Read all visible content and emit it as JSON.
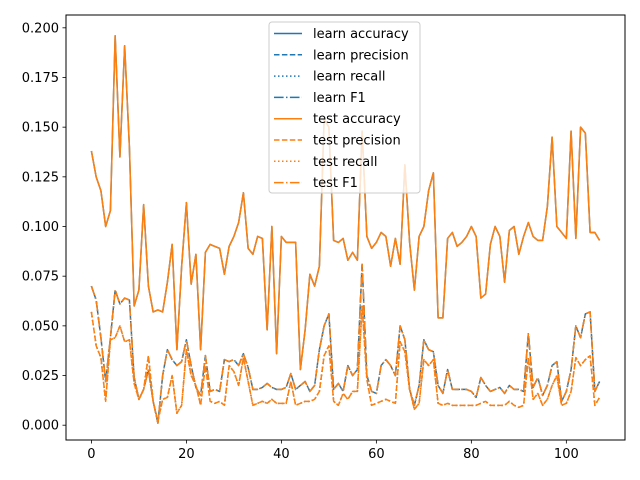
{
  "chart_data": {
    "type": "line",
    "title": "",
    "xlabel": "",
    "ylabel": "",
    "xlim": [
      -5.35,
      112.35
    ],
    "ylim": [
      -0.00745,
      0.20645
    ],
    "xticks": [
      0,
      20,
      40,
      60,
      80,
      100
    ],
    "yticks": [
      0.0,
      0.025,
      0.05,
      0.075,
      0.1,
      0.125,
      0.15,
      0.175,
      0.2
    ],
    "ytick_labels": [
      "0.000",
      "0.025",
      "0.050",
      "0.075",
      "0.100",
      "0.125",
      "0.150",
      "0.175",
      "0.200"
    ],
    "grid": false,
    "legend_position": "upper center",
    "colors": {
      "learn": "#1f77b4",
      "test": "#ff7f0e"
    },
    "x_start": 0,
    "x_end": 107,
    "accuracy": [
      0.138,
      0.125,
      0.118,
      0.1,
      0.108,
      0.196,
      0.135,
      0.191,
      0.14,
      0.06,
      0.068,
      0.111,
      0.07,
      0.057,
      0.058,
      0.057,
      0.072,
      0.091,
      0.038,
      0.08,
      0.112,
      0.071,
      0.086,
      0.038,
      0.087,
      0.091,
      0.09,
      0.089,
      0.076,
      0.09,
      0.095,
      0.102,
      0.117,
      0.089,
      0.086,
      0.095,
      0.094,
      0.048,
      0.1,
      0.036,
      0.095,
      0.092,
      0.092,
      0.092,
      0.028,
      0.048,
      0.076,
      0.07,
      0.08,
      0.154,
      0.15,
      0.093,
      0.092,
      0.094,
      0.083,
      0.087,
      0.083,
      0.148,
      0.095,
      0.089,
      0.092,
      0.097,
      0.095,
      0.08,
      0.094,
      0.081,
      0.131,
      0.092,
      0.068,
      0.095,
      0.1,
      0.118,
      0.127,
      0.054,
      0.054,
      0.094,
      0.097,
      0.09,
      0.092,
      0.095,
      0.1,
      0.095,
      0.064,
      0.066,
      0.091,
      0.1,
      0.095,
      0.072,
      0.098,
      0.1,
      0.086,
      0.095,
      0.102,
      0.095,
      0.093,
      0.093,
      0.11,
      0.145,
      0.1,
      0.097,
      0.094,
      0.148,
      0.094,
      0.15,
      0.147,
      0.097,
      0.097,
      0.093
    ],
    "series_a": [
      0.07,
      0.063,
      0.044,
      0.022,
      0.044,
      0.068,
      0.061,
      0.064,
      0.063,
      0.024,
      0.013,
      0.018,
      0.028,
      0.012,
      0.001,
      0.025,
      0.038,
      0.033,
      0.03,
      0.032,
      0.043,
      0.03,
      0.019,
      0.015,
      0.035,
      0.017,
      0.018,
      0.017,
      0.033,
      0.032,
      0.033,
      0.03,
      0.036,
      0.029,
      0.018,
      0.018,
      0.019,
      0.021,
      0.019,
      0.018,
      0.018,
      0.019,
      0.026,
      0.018,
      0.02,
      0.022,
      0.017,
      0.02,
      0.038,
      0.05,
      0.056,
      0.018,
      0.021,
      0.017,
      0.03,
      0.025,
      0.028,
      0.081,
      0.025,
      0.017,
      0.016,
      0.03,
      0.033,
      0.03,
      0.025,
      0.05,
      0.043,
      0.018,
      0.01,
      0.02,
      0.043,
      0.038,
      0.037,
      0.02,
      0.016,
      0.028,
      0.018,
      0.018,
      0.018,
      0.018,
      0.017,
      0.014,
      0.024,
      0.02,
      0.017,
      0.018,
      0.019,
      0.016,
      0.02,
      0.018,
      0.018,
      0.017,
      0.046,
      0.019,
      0.024,
      0.015,
      0.02,
      0.03,
      0.032,
      0.012,
      0.017,
      0.028,
      0.05,
      0.044,
      0.056,
      0.057,
      0.017,
      0.022
    ],
    "series_b": [
      0.057,
      0.04,
      0.034,
      0.012,
      0.043,
      0.044,
      0.05,
      0.042,
      0.043,
      0.021,
      0.013,
      0.018,
      0.035,
      0.012,
      0.002,
      0.013,
      0.014,
      0.025,
      0.006,
      0.01,
      0.038,
      0.025,
      0.02,
      0.01,
      0.03,
      0.012,
      0.011,
      0.012,
      0.01,
      0.03,
      0.027,
      0.02,
      0.034,
      0.022,
      0.01,
      0.011,
      0.012,
      0.011,
      0.013,
      0.011,
      0.011,
      0.011,
      0.022,
      0.01,
      0.011,
      0.012,
      0.012,
      0.013,
      0.017,
      0.035,
      0.04,
      0.012,
      0.01,
      0.016,
      0.013,
      0.017,
      0.017,
      0.06,
      0.023,
      0.01,
      0.011,
      0.012,
      0.013,
      0.012,
      0.011,
      0.042,
      0.037,
      0.018,
      0.008,
      0.011,
      0.033,
      0.03,
      0.033,
      0.011,
      0.01,
      0.011,
      0.01,
      0.01,
      0.01,
      0.01,
      0.01,
      0.01,
      0.011,
      0.012,
      0.01,
      0.01,
      0.01,
      0.01,
      0.012,
      0.01,
      0.009,
      0.01,
      0.034,
      0.013,
      0.016,
      0.01,
      0.013,
      0.02,
      0.025,
      0.01,
      0.011,
      0.017,
      0.034,
      0.03,
      0.033,
      0.035,
      0.01,
      0.014
    ],
    "series": [
      {
        "name": "learn accuracy",
        "group": "learn",
        "dash": "solid",
        "data": "accuracy"
      },
      {
        "name": "learn precision",
        "group": "learn",
        "dash": "dashed",
        "data": "series_a"
      },
      {
        "name": "learn recall",
        "group": "learn",
        "dash": "dotted",
        "data": "series_b"
      },
      {
        "name": "learn F1",
        "group": "learn",
        "dash": "dashdot",
        "data": "series_a"
      },
      {
        "name": "test accuracy",
        "group": "test",
        "dash": "solid",
        "data": "accuracy"
      },
      {
        "name": "test precision",
        "group": "test",
        "dash": "dashed",
        "data": "series_b"
      },
      {
        "name": "test recall",
        "group": "test",
        "dash": "dotted",
        "data": "series_b"
      },
      {
        "name": "test F1",
        "group": "test",
        "dash": "dashdot",
        "data": "series_a"
      }
    ]
  }
}
